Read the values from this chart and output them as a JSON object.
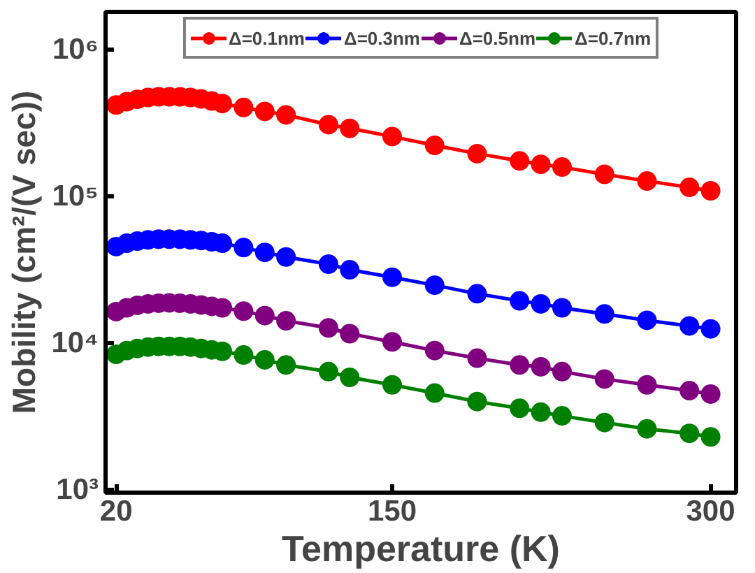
{
  "chart_data": {
    "type": "line",
    "xlabel": "Temperature (K)",
    "ylabel": "Mobility (cm²/(V sec))",
    "x": [
      20,
      25,
      30,
      35,
      40,
      45,
      50,
      55,
      60,
      65,
      70,
      80,
      90,
      100,
      120,
      130,
      150,
      170,
      190,
      210,
      220,
      230,
      250,
      270,
      290,
      300
    ],
    "series": [
      {
        "name": "Δ=0.1nm",
        "color": "#ff0000",
        "values": [
          418000,
          440000,
          457000,
          470000,
          475000,
          475000,
          475000,
          470000,
          460000,
          445000,
          428000,
          402000,
          378000,
          358000,
          307000,
          290000,
          255000,
          222000,
          195000,
          174000,
          165000,
          158000,
          141000,
          127000,
          115000,
          109000
        ]
      },
      {
        "name": "Δ=0.3nm",
        "color": "#0000ff",
        "values": [
          45400,
          47900,
          49500,
          50500,
          51000,
          51000,
          51000,
          50500,
          50000,
          49000,
          47900,
          44700,
          41500,
          38600,
          34500,
          31600,
          28100,
          24800,
          21700,
          19400,
          18500,
          17400,
          15800,
          14300,
          13100,
          12500
        ]
      },
      {
        "name": "Δ=0.5nm",
        "color": "#800080",
        "values": [
          16400,
          17400,
          18100,
          18500,
          18700,
          18800,
          18700,
          18500,
          18200,
          17800,
          17400,
          16500,
          15400,
          14200,
          12700,
          11600,
          10200,
          8900,
          7900,
          7100,
          6900,
          6400,
          5700,
          5200,
          4750,
          4500
        ]
      },
      {
        "name": "Δ=0.7nm",
        "color": "#008000",
        "values": [
          8400,
          8900,
          9200,
          9400,
          9500,
          9500,
          9500,
          9400,
          9200,
          9000,
          8800,
          8300,
          7700,
          7100,
          6400,
          5850,
          5200,
          4570,
          4000,
          3600,
          3390,
          3200,
          2880,
          2610,
          2430,
          2300
        ]
      }
    ],
    "xlim": [
      15,
      312
    ],
    "xticks": [
      20,
      150,
      300
    ],
    "ylim": [
      960,
      1800000
    ],
    "log": "y",
    "yticks": [
      {
        "value": 1000,
        "label": "10³"
      },
      {
        "value": 10000,
        "label": "10⁴"
      },
      {
        "value": 100000,
        "label": "10⁵"
      },
      {
        "value": 1000000,
        "label": "10⁶"
      }
    ],
    "marker": "circle",
    "line_style": "solid",
    "legend": "top",
    "grid": false
  }
}
